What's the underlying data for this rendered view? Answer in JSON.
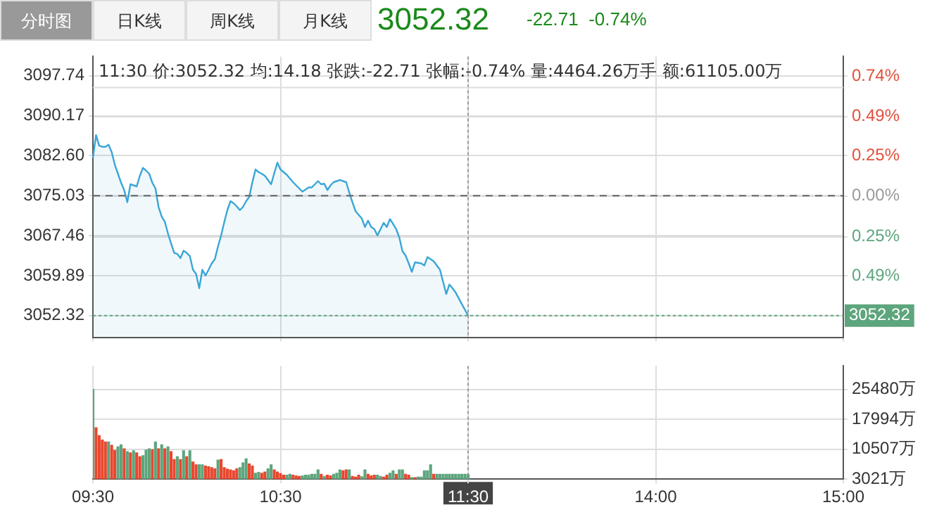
{
  "chart_data": [
    {
      "type": "area",
      "title": "3052.32",
      "subtitle": "-22.71  -0.74%",
      "annotations": [
        "分时图",
        "日K线",
        "周K线",
        "月K线",
        "11:30 价:3052.32 均:14.18 张跌:-22.71 张幅:-0.74% 量:4464.26万手 额:61105.00万"
      ],
      "categories": [
        "09:30",
        null,
        null,
        null,
        null,
        null,
        null,
        null,
        null,
        null,
        null,
        null,
        null,
        null,
        null,
        null,
        null,
        null,
        null,
        null,
        null,
        null,
        null,
        null,
        null,
        null,
        null,
        null,
        null,
        null,
        null,
        null,
        null,
        null,
        null,
        null,
        null,
        null,
        null,
        null,
        null,
        null,
        null,
        null,
        null,
        null,
        null,
        null,
        null,
        null,
        null,
        null,
        null,
        null,
        null,
        null,
        null,
        null,
        null,
        null,
        "10:30",
        null,
        null,
        null,
        null,
        null,
        null,
        null,
        null,
        null,
        null,
        null,
        null,
        null,
        null,
        null,
        null,
        null,
        null,
        null,
        null,
        null,
        null,
        null,
        null,
        null,
        null,
        null,
        null,
        null,
        null,
        null,
        null,
        null,
        null,
        null,
        null,
        null,
        null,
        null,
        null,
        null,
        null,
        null,
        null,
        null,
        null,
        null,
        null,
        null,
        null,
        null,
        null,
        null,
        null,
        null,
        null,
        null,
        null,
        null,
        "11:30",
        null,
        null,
        null,
        null,
        null,
        null,
        null,
        null,
        null,
        null,
        null,
        null,
        null,
        null,
        null,
        null,
        null,
        null,
        null,
        null,
        null,
        null,
        null,
        null,
        null,
        null,
        null,
        null,
        null,
        null,
        null,
        null,
        null,
        null,
        null,
        null,
        null,
        null,
        null,
        null,
        null,
        null,
        null,
        null,
        null,
        null,
        null,
        null,
        null,
        null,
        null,
        null,
        null,
        null,
        null,
        null,
        null,
        null,
        null,
        "14:00",
        null,
        null,
        null,
        null,
        null,
        null,
        null,
        null,
        null,
        null,
        null,
        null,
        null,
        null,
        null,
        null,
        null,
        null,
        null,
        null,
        null,
        null,
        null,
        null,
        null,
        null,
        null,
        null,
        null,
        null,
        null,
        null,
        null,
        null,
        null,
        null,
        null,
        null,
        null,
        null,
        null,
        null,
        null,
        null,
        null,
        null,
        null,
        null,
        null,
        null,
        null,
        null,
        null,
        null,
        null,
        null,
        null,
        null,
        null,
        "15:00"
      ],
      "series": [
        {
          "color": "#3aa6d6",
          "values": [
            3082.2,
            3086.5,
            3084.5,
            3084.3,
            3084.3,
            3084.7,
            3083.3,
            3080.9,
            3079.2,
            3077.5,
            3076.1,
            3073.8,
            3077.2,
            3077.0,
            3076.8,
            3078.8,
            3080.3,
            3079.8,
            3079.2,
            3077.5,
            3076.4,
            3072.9,
            3071.1,
            3070.1,
            3067.9,
            3066.0,
            3064.2,
            3064.0,
            3063.2,
            3064.6,
            3064.2,
            3063.6,
            3061.0,
            3060.2,
            3057.5,
            3061.0,
            3059.9,
            3061.0,
            3062.2,
            3063.0,
            3065.4,
            3067.5,
            3070.0,
            3072.3,
            3074.0,
            3073.6,
            3073.0,
            3072.3,
            3072.9,
            3074.0,
            3074.8,
            3077.6,
            3080.0,
            3079.5,
            3079.2,
            3078.8,
            3078.0,
            3077.2,
            3079.3,
            3081.3,
            3080.0,
            3079.5,
            3079.0,
            3078.3,
            3077.6,
            3077.0,
            3076.4,
            3075.8,
            3076.2,
            3076.6,
            3076.6,
            3077.2,
            3077.8,
            3077.2,
            3077.3,
            3076.1,
            3077.0,
            3077.6,
            3077.8,
            3078.0,
            3077.8,
            3077.6,
            3075.6,
            3073.8,
            3072.1,
            3071.4,
            3070.7,
            3069.1,
            3070.3,
            3069.1,
            3068.7,
            3067.5,
            3068.7,
            3069.9,
            3069.1,
            3070.6,
            3069.7,
            3068.7,
            3067.1,
            3064.5,
            3063.7,
            3062.2,
            3060.6,
            3062.4,
            3062.3,
            3062.2,
            3061.8,
            3063.4,
            3063.0,
            3062.6,
            3061.8,
            3061.0,
            3058.7,
            3056.4,
            3058.2,
            3057.5,
            3056.7,
            3055.6,
            3054.5,
            3053.4,
            3052.32,
            null,
            null,
            null,
            null,
            null,
            null,
            null,
            null,
            null,
            null,
            null,
            null,
            null,
            null,
            null,
            null,
            null,
            null,
            null,
            null,
            null,
            null,
            null,
            null,
            null,
            null,
            null,
            null,
            null,
            null,
            null,
            null,
            null,
            null,
            null,
            null,
            null,
            null,
            null,
            null,
            null,
            null,
            null,
            null,
            null,
            null,
            null,
            null,
            null,
            null,
            null,
            null,
            null,
            null,
            null,
            null,
            null,
            null,
            null,
            null,
            null,
            null,
            null,
            null,
            null,
            null,
            null,
            null,
            null,
            null,
            null,
            null,
            null,
            null,
            null,
            null,
            null,
            null,
            null,
            null,
            null,
            null,
            null,
            null,
            null,
            null,
            null,
            null,
            null,
            null,
            null,
            null,
            null,
            null,
            null,
            null,
            null,
            null,
            null,
            null,
            null,
            null,
            null,
            null,
            null,
            null,
            null,
            null,
            null,
            null,
            null,
            null,
            null,
            null,
            null,
            null,
            null,
            null,
            null,
            null
          ]
        }
      ],
      "ylim": [
        3048.2,
        3101.4
      ],
      "yticks": [
        3097.74,
        3090.17,
        {
          "value": 3082.6,
          "label": "3082.60"
        },
        3075.03,
        3067.46,
        3059.89,
        3052.32
      ],
      "y2lim": [
        -0.87,
        0.86
      ],
      "y2ticks": [
        {
          "value": 0.74,
          "label": "0.74%"
        },
        {
          "value": 0.49,
          "label": "0.49%"
        },
        {
          "value": 0.25,
          "label": "0.25%"
        },
        {
          "value": 0,
          "label": "0.00%"
        },
        {
          "value": -0.25,
          "label": "0.25%"
        },
        {
          "value": -0.49,
          "label": "0.49%"
        }
      ],
      "ref_lines": [
        {
          "axis": "y",
          "value": 3075.03,
          "line_style": "dashed",
          "color": "#666666"
        },
        {
          "axis": "y",
          "value": 3052.32,
          "label": "3052.32",
          "line_style": "dotted",
          "color": "#5da57d"
        },
        {
          "axis": "x",
          "value": "11:30",
          "line_style": "dotted",
          "color": "#999999"
        }
      ],
      "grid": true,
      "legend": false,
      "marker": "none",
      "tick_labels": "y"
    },
    {
      "type": "bar",
      "categories": [
        "09:30",
        null,
        null,
        null,
        null,
        null,
        null,
        null,
        null,
        null,
        null,
        null,
        null,
        null,
        null,
        null,
        null,
        null,
        null,
        null,
        null,
        null,
        null,
        null,
        null,
        null,
        null,
        null,
        null,
        null,
        null,
        null,
        null,
        null,
        null,
        null,
        null,
        null,
        null,
        null,
        null,
        null,
        null,
        null,
        null,
        null,
        null,
        null,
        null,
        null,
        null,
        null,
        null,
        null,
        null,
        null,
        null,
        null,
        null,
        null,
        "10:30",
        null,
        null,
        null,
        null,
        null,
        null,
        null,
        null,
        null,
        null,
        null,
        null,
        null,
        null,
        null,
        null,
        null,
        null,
        null,
        null,
        null,
        null,
        null,
        null,
        null,
        null,
        null,
        null,
        null,
        null,
        null,
        null,
        null,
        null,
        null,
        null,
        null,
        null,
        null,
        null,
        null,
        null,
        null,
        null,
        null,
        null,
        null,
        null,
        null,
        null,
        null,
        null,
        null,
        null,
        null,
        null,
        null,
        null,
        null,
        "11:30",
        null,
        null,
        null,
        null,
        null,
        null,
        null,
        null,
        null,
        null,
        null,
        null,
        null,
        null,
        null,
        null,
        null,
        null,
        null,
        null,
        null,
        null,
        null,
        null,
        null,
        null,
        null,
        null,
        null,
        null,
        null,
        null,
        null,
        null,
        null,
        null,
        null,
        null,
        null,
        null,
        null,
        null,
        null,
        null,
        null,
        null,
        null,
        null,
        null,
        null,
        null,
        null,
        null,
        null,
        null,
        null,
        null,
        null,
        null,
        "14:00",
        null,
        null,
        null,
        null,
        null,
        null,
        null,
        null,
        null,
        null,
        null,
        null,
        null,
        null,
        null,
        null,
        null,
        null,
        null,
        null,
        null,
        null,
        null,
        null,
        null,
        null,
        null,
        null,
        null,
        null,
        null,
        null,
        null,
        null,
        null,
        null,
        null,
        null,
        null,
        null,
        null,
        null,
        null,
        null,
        null,
        null,
        null,
        null,
        null,
        null,
        null,
        null,
        null,
        null,
        null,
        null,
        null,
        null,
        null,
        "15:00"
      ],
      "series": [
        {
          "axis": "y2",
          "values": [
            25500,
            15900,
            13900,
            12800,
            12300,
            12300,
            11500,
            10200,
            11100,
            11600,
            10600,
            9900,
            9600,
            10100,
            9600,
            8600,
            8900,
            10300,
            10600,
            10400,
            12300,
            10600,
            11600,
            10600,
            11100,
            9900,
            7900,
            8600,
            7900,
            10100,
            8600,
            10100,
            7300,
            6600,
            6600,
            6600,
            6300,
            6100,
            5900,
            5600,
            7800,
            7900,
            5900,
            5500,
            5300,
            5100,
            5600,
            5900,
            7100,
            8100,
            6800,
            6300,
            4500,
            4700,
            4500,
            4800,
            5600,
            6600,
            5300,
            4800,
            4400,
            4000,
            4000,
            4200,
            4000,
            3800,
            3700,
            3800,
            4000,
            4000,
            4200,
            4200,
            5300,
            4200,
            3700,
            4000,
            3800,
            4200,
            4500,
            5300,
            5100,
            5300,
            5300,
            3700,
            3500,
            4000,
            3600,
            5300,
            4200,
            3800,
            4000,
            4000,
            3700,
            3500,
            4000,
            4500,
            5100,
            4200,
            5300,
            5300,
            4200,
            4000,
            3400,
            3400,
            3500,
            3500,
            5100,
            5100,
            6600,
            4200,
            4200,
            4200,
            4200,
            4200,
            4200,
            4200,
            4200,
            4200,
            4200,
            4200,
            4200,
            null,
            null,
            null,
            null,
            null,
            null,
            null,
            null,
            null,
            null,
            null,
            null,
            null,
            null,
            null,
            null,
            null,
            null,
            null,
            null,
            null,
            null,
            null,
            null,
            null,
            null,
            null,
            null,
            null,
            null,
            null,
            null,
            null,
            null,
            null,
            null,
            null,
            null,
            null,
            null,
            null,
            null,
            null,
            null,
            null,
            null,
            null,
            null,
            null,
            null,
            null,
            null,
            null,
            null,
            null,
            null,
            null,
            null,
            null,
            null,
            null,
            null,
            null,
            null,
            null,
            null,
            null,
            null,
            null,
            null,
            null,
            null,
            null,
            null,
            null,
            null,
            null,
            null,
            null,
            null,
            null,
            null,
            null,
            null,
            null,
            null,
            null,
            null,
            null,
            null,
            null,
            null,
            null,
            null,
            null,
            null,
            null,
            null,
            null,
            null,
            null,
            null,
            null,
            null,
            null,
            null,
            null,
            null,
            null,
            null,
            null,
            null,
            null,
            null,
            null,
            null,
            null,
            null,
            null,
            null
          ],
          "colors": [
            "#5da57d",
            "#e8472f",
            "#e8472f",
            "#e8472f",
            "#e8472f",
            "#5da57d",
            "#e8472f",
            "#e8472f",
            "#5da57d",
            "#5da57d",
            "#e8472f",
            "#5da57d",
            "#e8472f",
            "#5da57d",
            "#e8472f",
            "#e8472f",
            "#5da57d",
            "#5da57d",
            "#5da57d",
            "#e8472f",
            "#5da57d",
            "#e8472f",
            "#5da57d",
            "#e8472f",
            "#5da57d",
            "#e8472f",
            "#e8472f",
            "#5da57d",
            "#e8472f",
            "#5da57d",
            "#e8472f",
            "#5da57d",
            "#e8472f",
            "#e8472f",
            "#5da57d",
            "#5da57d",
            "#e8472f",
            "#e8472f",
            "#e8472f",
            "#e8472f",
            "#5da57d",
            "#e8472f",
            "#e8472f",
            "#e8472f",
            "#e8472f",
            "#e8472f",
            "#e8472f",
            "#5da57d",
            "#5da57d",
            "#5da57d",
            "#e8472f",
            "#e8472f",
            "#5da57d",
            "#5da57d",
            "#e8472f",
            "#e8472f",
            "#5da57d",
            "#5da57d",
            "#e8472f",
            "#e8472f",
            "#e8472f",
            "#e8472f",
            "#5da57d",
            "#5da57d",
            "#e8472f",
            "#e8472f",
            "#e8472f",
            "#5da57d",
            "#5da57d",
            "#5da57d",
            "#5da57d",
            "#5da57d",
            "#5da57d",
            "#e8472f",
            "#5da57d",
            "#e8472f",
            "#e8472f",
            "#5da57d",
            "#5da57d",
            "#5da57d",
            "#e8472f",
            "#e8472f",
            "#5da57d",
            "#e8472f",
            "#e8472f",
            "#e8472f",
            "#5da57d",
            "#5da57d",
            "#e8472f",
            "#e8472f",
            "#e8472f",
            "#5da57d",
            "#5da57d",
            "#e8472f",
            "#e8472f",
            "#5da57d",
            "#5da57d",
            "#e8472f",
            "#5da57d",
            "#5da57d",
            "#e8472f",
            "#e8472f",
            "#5da57d",
            "#e8472f",
            "#5da57d",
            "#5da57d",
            "#5da57d",
            "#5da57d",
            "#5da57d",
            "#e8472f",
            "#5da57d",
            "#5da57d",
            "#5da57d",
            "#5da57d",
            "#5da57d",
            "#5da57d",
            "#5da57d",
            "#5da57d",
            "#5da57d",
            "#5da57d",
            "#5da57d",
            null,
            null,
            null,
            null,
            null,
            null,
            null,
            null,
            null,
            null,
            null,
            null,
            null,
            null,
            null,
            null,
            null,
            null,
            null,
            null,
            null,
            null,
            null,
            null,
            null,
            null,
            null,
            null,
            null,
            null,
            null,
            null,
            null,
            null,
            null,
            null,
            null,
            null,
            null,
            null,
            null,
            null,
            null,
            null,
            null,
            null,
            null,
            null,
            null,
            null,
            null,
            null,
            null,
            null,
            null,
            null,
            null,
            null,
            null,
            null,
            null,
            null,
            null,
            null,
            null,
            null,
            null,
            null,
            null,
            null,
            null,
            null,
            null,
            null,
            null,
            null,
            null,
            null,
            null,
            null,
            null,
            null,
            null,
            null,
            null,
            null,
            null,
            null,
            null,
            null,
            null,
            null,
            null,
            null,
            null,
            null,
            null,
            null,
            null,
            null,
            null,
            null,
            null,
            null,
            null,
            null,
            null,
            null,
            null,
            null,
            null,
            null,
            null,
            null,
            null,
            null,
            null,
            null,
            null,
            null
          ]
        }
      ],
      "y2lim": [
        3021,
        31350
      ],
      "y2ticks": [
        {
          "value": 3021,
          "label": "3021万"
        },
        {
          "value": 10507,
          "label": "10507万"
        },
        {
          "value": 17994,
          "label": "17994万"
        },
        {
          "value": 25480,
          "label": "25480万"
        }
      ],
      "ref_lines": [
        {
          "axis": "x",
          "value": "11:30",
          "line_style": "dotted",
          "color": "#999999"
        }
      ],
      "grid": true,
      "legend": false
    }
  ]
}
